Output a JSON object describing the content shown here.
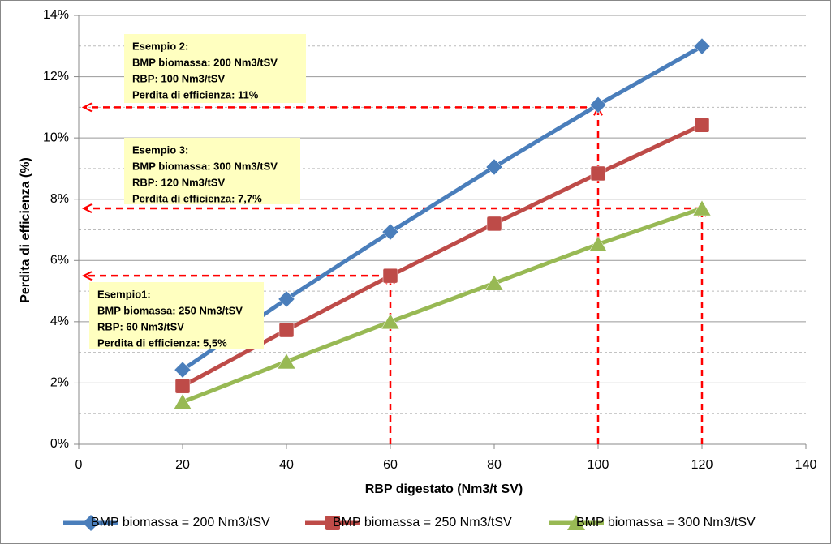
{
  "chart_data": {
    "type": "line",
    "x_label": "RBP digestato (Nm3/t SV)",
    "y_label": "Perdita di efficienza (%)",
    "x": [
      20,
      40,
      60,
      80,
      100,
      120
    ],
    "series": [
      {
        "name": "BMP biomassa = 200 Nm3/tSV",
        "color": "#4a7ebb",
        "marker": "diamond",
        "values": [
          2.43,
          4.74,
          6.93,
          9.05,
          11.08,
          12.99
        ]
      },
      {
        "name": "BMP biomassa = 250 Nm3/tSV",
        "color": "#be4b48",
        "marker": "square",
        "values": [
          1.9,
          3.73,
          5.5,
          7.2,
          8.84,
          10.42
        ]
      },
      {
        "name": "BMP biomassa = 300 Nm3/tSV",
        "color": "#98b954",
        "marker": "triangle",
        "values": [
          1.38,
          2.7,
          4.0,
          5.26,
          6.53,
          7.7
        ]
      }
    ],
    "xlim": [
      0,
      140
    ],
    "xticks": [
      0,
      20,
      40,
      60,
      80,
      100,
      120,
      140
    ],
    "ylim": [
      0,
      14
    ],
    "yticks": [
      {
        "value": 0,
        "label": "0%"
      },
      {
        "value": 2,
        "label": "2%"
      },
      {
        "value": 4,
        "label": "4%"
      },
      {
        "value": 6,
        "label": "6%"
      },
      {
        "value": 8,
        "label": "8%"
      },
      {
        "value": 10,
        "label": "10%"
      },
      {
        "value": 12,
        "label": "12%"
      },
      {
        "value": 14,
        "label": "14%"
      }
    ],
    "minor_yticks": [
      1,
      3,
      5,
      7,
      9,
      11,
      13
    ],
    "grid": true,
    "legend": "bottom",
    "annotations": [
      {
        "lines": [
          "Esempio1:",
          "BMP biomassa: 250 Nm3/tSV",
          "RBP: 60 Nm3/tSV",
          "Perdita di efficienza: 5,5%"
        ],
        "x": 60,
        "y": 5.5,
        "color": "#ff0000"
      },
      {
        "lines": [
          "Esempio 2:",
          "BMP biomassa: 200 Nm3/tSV",
          "RBP: 100 Nm3/tSV",
          "Perdita di efficienza: 11%"
        ],
        "x": 100,
        "y": 11,
        "color": "#ff0000"
      },
      {
        "lines": [
          "Esempio 3:",
          "BMP biomassa: 300 Nm3/tSV",
          "RBP: 120 Nm3/tSV",
          "Perdita di efficienza: 7,7%"
        ],
        "x": 120,
        "y": 7.7,
        "color": "#ff0000"
      }
    ]
  }
}
